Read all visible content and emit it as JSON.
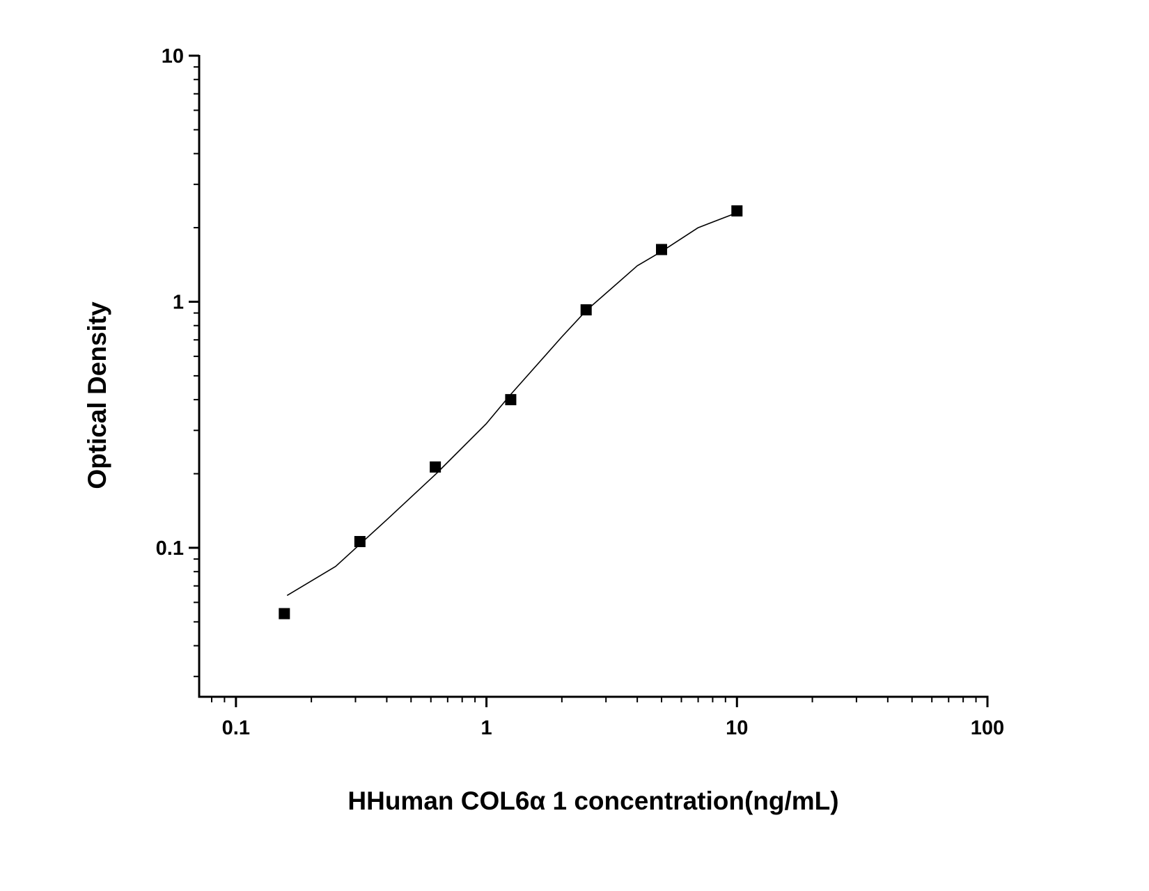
{
  "chart_data": {
    "type": "scatter",
    "x_label": "HHuman COL6α 1 concentration(ng/mL)",
    "y_label": "Optical Density",
    "xscale": "log",
    "yscale": "log",
    "xlim": [
      0.0713,
      100
    ],
    "ylim": [
      0.0248,
      10
    ],
    "xticks": [
      0.1,
      1,
      10,
      100
    ],
    "yticks": [
      0.1,
      1,
      10
    ],
    "minor_ticks": true,
    "series": [
      {
        "kind": "points",
        "color": "#000000",
        "x": [
          0.156,
          0.3125,
          0.625,
          1.25,
          2.5,
          5,
          10
        ],
        "values": [
          0.054,
          0.106,
          0.213,
          0.4,
          0.927,
          1.63,
          2.34
        ]
      },
      {
        "kind": "fit",
        "color": "#000000",
        "x": [
          0.16,
          0.25,
          0.4,
          0.63,
          1,
          1.25,
          2,
          2.5,
          4,
          5,
          7,
          10
        ],
        "values": [
          0.064,
          0.084,
          0.13,
          0.2,
          0.32,
          0.42,
          0.72,
          0.92,
          1.4,
          1.6,
          2.0,
          2.3
        ]
      }
    ]
  }
}
